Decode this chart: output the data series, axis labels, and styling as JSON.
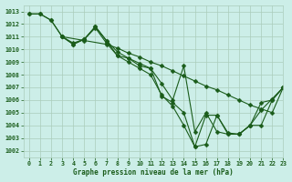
{
  "title": "Graphe pression niveau de la mer (hPa)",
  "bg_color": "#cceee8",
  "grid_color": "#aaccbb",
  "line_color": "#1a5c1a",
  "xlim": [
    -0.5,
    23
  ],
  "ylim": [
    1001.5,
    1013.5
  ],
  "yticks": [
    1002,
    1003,
    1004,
    1005,
    1006,
    1007,
    1008,
    1009,
    1010,
    1011,
    1012,
    1013
  ],
  "xticks": [
    0,
    1,
    2,
    3,
    4,
    5,
    6,
    7,
    8,
    9,
    10,
    11,
    12,
    13,
    14,
    15,
    16,
    17,
    18,
    19,
    20,
    21,
    22,
    23
  ],
  "lines": [
    {
      "x": [
        0,
        1,
        2,
        3,
        5,
        7,
        8,
        9,
        10,
        11,
        12,
        13,
        14,
        15,
        16,
        17,
        18,
        19,
        20,
        21,
        22,
        23
      ],
      "y": [
        1012.8,
        1012.8,
        1012.3,
        1011.0,
        1010.7,
        1010.4,
        1010.1,
        1009.7,
        1009.4,
        1009.0,
        1008.7,
        1008.3,
        1007.9,
        1007.5,
        1007.1,
        1006.8,
        1006.4,
        1006.0,
        1005.6,
        1005.3,
        1005.0,
        1007.0
      ]
    },
    {
      "x": [
        0,
        1,
        2,
        3,
        4,
        5,
        6,
        7,
        8,
        9,
        10,
        11,
        12,
        13,
        14,
        15,
        16,
        17,
        18,
        19,
        20,
        21,
        22,
        23
      ],
      "y": [
        1012.8,
        1012.8,
        1012.3,
        1011.0,
        1010.5,
        1010.8,
        1011.7,
        1010.5,
        1009.5,
        1009.0,
        1008.5,
        1008.0,
        1006.4,
        1005.5,
        1004.0,
        1002.3,
        1002.5,
        1004.8,
        1003.4,
        1003.3,
        1004.0,
        1005.2,
        1006.1,
        1007.0
      ]
    },
    {
      "x": [
        3,
        4,
        5,
        6,
        7,
        8,
        9,
        10,
        11,
        12,
        13,
        14,
        15,
        16,
        17,
        18,
        19,
        20,
        21,
        22,
        23
      ],
      "y": [
        1011.0,
        1010.4,
        1010.8,
        1011.8,
        1010.7,
        1009.5,
        1009.3,
        1008.7,
        1008.5,
        1006.3,
        1005.8,
        1005.0,
        1002.3,
        1004.8,
        1004.8,
        1003.3,
        1003.3,
        1004.0,
        1004.0,
        1006.0,
        1007.0
      ]
    },
    {
      "x": [
        3,
        4,
        5,
        6,
        7,
        8,
        9,
        10,
        11,
        12,
        13,
        14,
        15,
        16,
        17,
        18,
        19,
        20,
        21,
        22,
        23
      ],
      "y": [
        1011.0,
        1010.4,
        1010.8,
        1011.8,
        1010.7,
        1009.8,
        1009.3,
        1008.9,
        1008.5,
        1007.3,
        1006.0,
        1008.7,
        1003.5,
        1005.0,
        1003.5,
        1003.3,
        1003.3,
        1004.0,
        1005.8,
        1006.0,
        1007.0
      ]
    }
  ]
}
